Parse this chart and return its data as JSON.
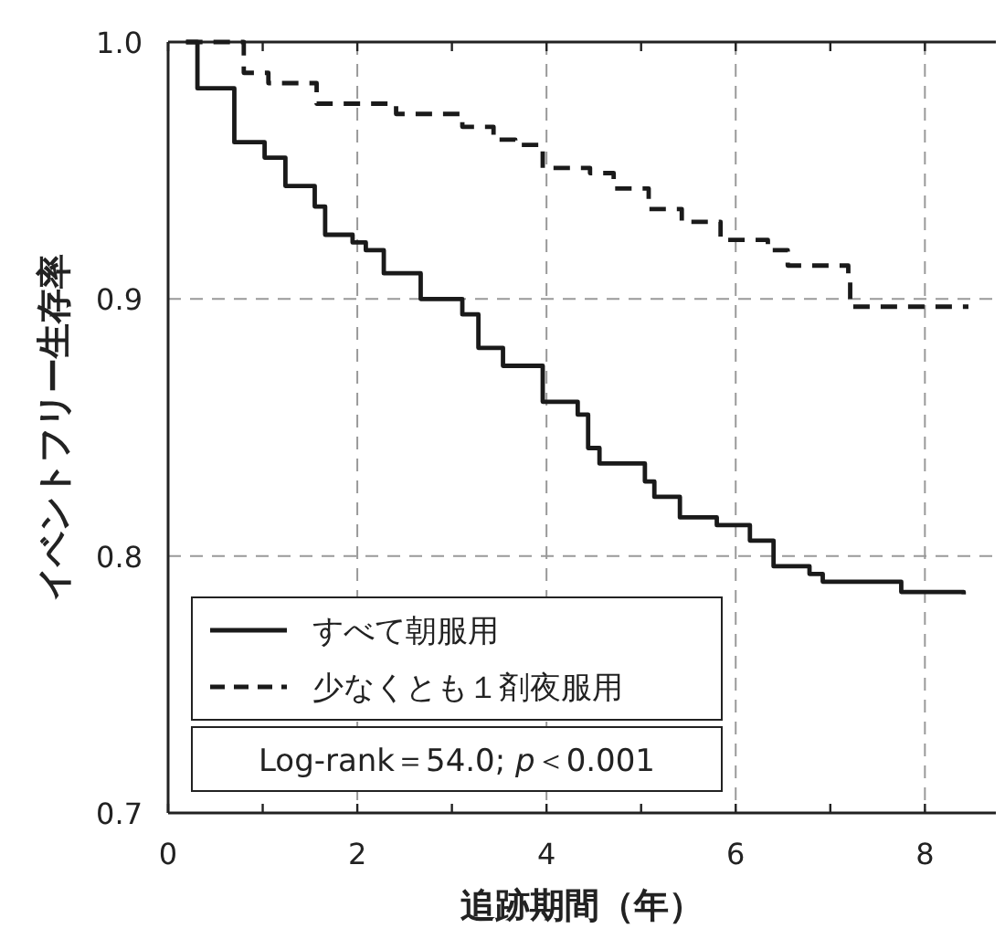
{
  "chart_data": {
    "type": "step",
    "xlabel": "追跡期間（年）",
    "ylabel": "イベントフリー生存率",
    "series": [
      {
        "name": "すべて朝服用",
        "color": "#1a1a1a",
        "line_style": "solid",
        "x": [
          0.19,
          0.31,
          0.7,
          1.02,
          1.24,
          1.55,
          1.66,
          1.95,
          2.09,
          2.28,
          2.67,
          3.11,
          3.28,
          3.54,
          3.96,
          4.33,
          4.44,
          4.56,
          5.04,
          5.14,
          5.41,
          5.8,
          6.15,
          6.4,
          6.78,
          6.92,
          7.73,
          7.75,
          8.41
        ],
        "values": [
          1.0,
          0.982,
          0.961,
          0.955,
          0.944,
          0.936,
          0.925,
          0.922,
          0.919,
          0.91,
          0.9,
          0.894,
          0.881,
          0.874,
          0.86,
          0.855,
          0.842,
          0.836,
          0.829,
          0.823,
          0.815,
          0.812,
          0.806,
          0.796,
          0.793,
          0.79,
          0.79,
          0.786,
          0.785
        ]
      },
      {
        "name": "少なくとも１剤夜服用",
        "color": "#1a1a1a",
        "line_style": "dashed",
        "x": [
          0.19,
          0.8,
          1.06,
          1.57,
          2.03,
          2.41,
          3.11,
          3.44,
          3.67,
          3.96,
          4.46,
          4.71,
          5.08,
          5.43,
          5.84,
          6.34,
          6.55,
          7.19,
          7.21,
          8.46
        ],
        "values": [
          1.0,
          0.988,
          0.984,
          0.976,
          0.976,
          0.972,
          0.967,
          0.962,
          0.96,
          0.951,
          0.949,
          0.943,
          0.935,
          0.93,
          0.923,
          0.919,
          0.913,
          0.907,
          0.897,
          0.897
        ]
      }
    ],
    "xlim": [
      0,
      8.75
    ],
    "ylim": [
      0.7,
      1.0
    ],
    "xticks": [
      0,
      {
        "value": 1,
        "label": null
      },
      2,
      {
        "value": 3,
        "label": null
      },
      4,
      {
        "value": 5,
        "label": null
      },
      6,
      {
        "value": 7,
        "label": null
      },
      8
    ],
    "yticks": [
      0.7,
      0.8,
      0.9,
      {
        "value": 1,
        "label": "1.0"
      }
    ],
    "grid": true,
    "legend": "bottom left",
    "annotations": [
      "Log-rank＝54.0; *p*＜0.001"
    ]
  }
}
